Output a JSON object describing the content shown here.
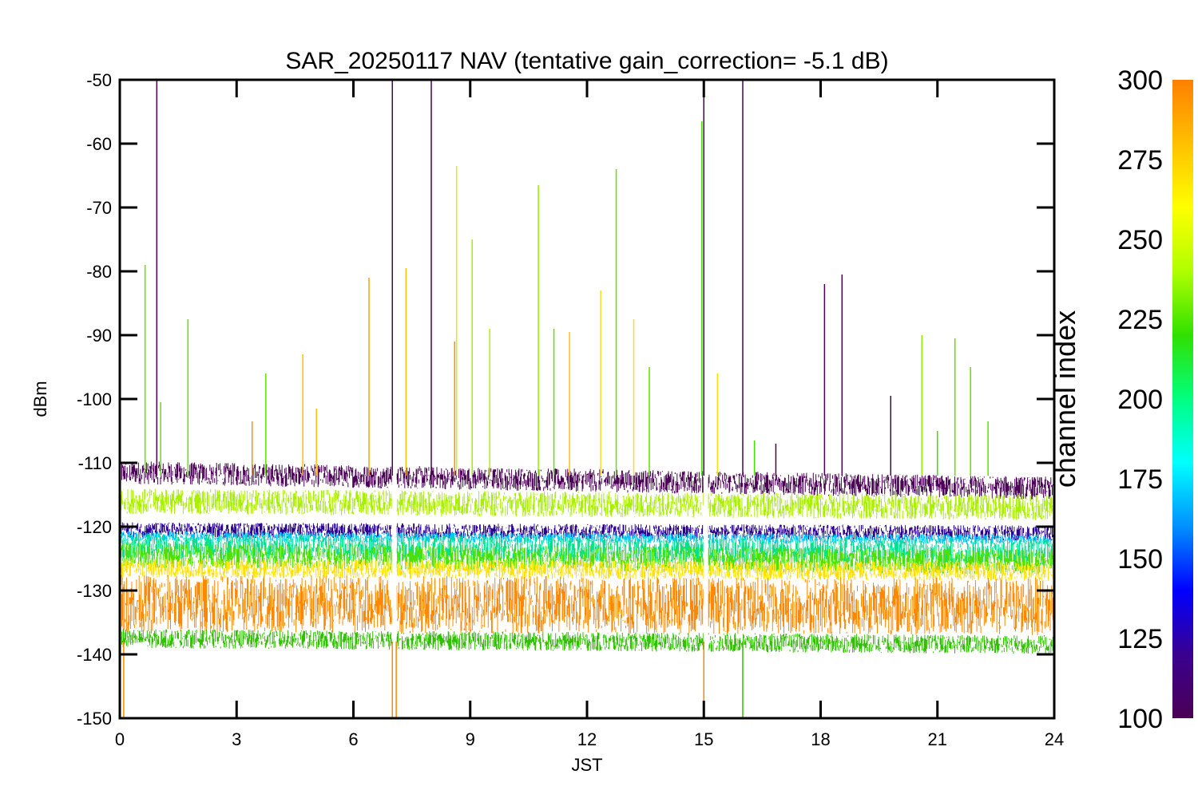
{
  "chart_data": {
    "type": "scatter",
    "title": "SAR_20250117 NAV (tentative gain_correction= -5.1 dB)",
    "xlabel": "JST",
    "ylabel": "dBm",
    "xlim": [
      0,
      24
    ],
    "ylim": [
      -150,
      -50
    ],
    "xticks": [
      "0",
      "3",
      "6",
      "9",
      "12",
      "15",
      "18",
      "21",
      "24"
    ],
    "xtick_values": [
      0,
      3,
      6,
      9,
      12,
      15,
      18,
      21,
      24
    ],
    "yticks": [
      "-50",
      "-60",
      "-70",
      "-80",
      "-90",
      "-100",
      "-110",
      "-120",
      "-130",
      "-140",
      "-150"
    ],
    "ytick_values": [
      -50,
      -60,
      -70,
      -80,
      -90,
      -100,
      -110,
      -120,
      -130,
      -140,
      -150
    ],
    "colorbar": {
      "label": "channel index",
      "range": [
        100,
        300
      ],
      "ticks": [
        "300",
        "275",
        "250",
        "225",
        "200",
        "175",
        "150",
        "125",
        "100"
      ],
      "tick_values": [
        300,
        275,
        250,
        225,
        200,
        175,
        150,
        125,
        100
      ],
      "colormap": [
        "#4b0055",
        "#3a0090",
        "#0000ff",
        "#0090ff",
        "#00ffff",
        "#00ff80",
        "#30e000",
        "#b0ff00",
        "#ffff00",
        "#ffc000",
        "#ff8000"
      ]
    },
    "gaps_hours": [
      7.05,
      15.05
    ],
    "series": [
      {
        "channel": 110,
        "color": "#4b0055",
        "level_start": -111.5,
        "level_end": -114.0,
        "noise": 1.8
      },
      {
        "channel": 250,
        "color": "#a8f000",
        "level_start": -116.0,
        "level_end": -117.0,
        "noise": 2.0
      },
      {
        "channel": 120,
        "color": "#2a0090",
        "level_start": -120.5,
        "level_end": -121.0,
        "noise": 1.2
      },
      {
        "channel": 160,
        "color": "#00c8ff",
        "level_start": -121.5,
        "level_end": -122.0,
        "noise": 0.8
      },
      {
        "channel": 200,
        "color": "#00e090",
        "level_start": -123.0,
        "level_end": -124.0,
        "noise": 2.0
      },
      {
        "channel": 240,
        "color": "#50e000",
        "level_start": -124.5,
        "level_end": -125.5,
        "noise": 2.0
      },
      {
        "channel": 270,
        "color": "#ffe000",
        "level_start": -126.5,
        "level_end": -127.0,
        "noise": 1.5
      },
      {
        "channel": 290,
        "color": "#ff8800",
        "level_start": -132.0,
        "level_end": -132.5,
        "noise": 4.5
      },
      {
        "channel": 230,
        "color": "#30c000",
        "level_start": -137.5,
        "level_end": -138.5,
        "noise": 1.5
      }
    ],
    "spikes": [
      {
        "x": 0.65,
        "y": -79,
        "color": "#60e000"
      },
      {
        "x": 0.95,
        "y": -50,
        "color": "#4b0055"
      },
      {
        "x": 1.05,
        "y": -100.5,
        "color": "#60e000"
      },
      {
        "x": 1.75,
        "y": -87.5,
        "color": "#60e000"
      },
      {
        "x": 3.4,
        "y": -103.5,
        "color": "#ff9000"
      },
      {
        "x": 3.75,
        "y": -96,
        "color": "#60e000"
      },
      {
        "x": 4.7,
        "y": -93,
        "color": "#ffc000"
      },
      {
        "x": 5.05,
        "y": -101.5,
        "color": "#ffc000"
      },
      {
        "x": 6.4,
        "y": -81,
        "color": "#ffa000"
      },
      {
        "x": 7.0,
        "y": -50,
        "color": "#4b0055"
      },
      {
        "x": 7.35,
        "y": -79.5,
        "color": "#ffc000"
      },
      {
        "x": 8.0,
        "y": -50,
        "color": "#4b0055"
      },
      {
        "x": 8.6,
        "y": -91,
        "color": "#ff9000"
      },
      {
        "x": 8.65,
        "y": -63.5,
        "color": "#d0f000"
      },
      {
        "x": 9.05,
        "y": -75,
        "color": "#a0f000"
      },
      {
        "x": 9.5,
        "y": -89,
        "color": "#b0f000"
      },
      {
        "x": 10.75,
        "y": -66.5,
        "color": "#90f000"
      },
      {
        "x": 11.15,
        "y": -89,
        "color": "#60e000"
      },
      {
        "x": 11.55,
        "y": -89.5,
        "color": "#ffc000"
      },
      {
        "x": 12.35,
        "y": -83,
        "color": "#ffe000"
      },
      {
        "x": 12.75,
        "y": -64,
        "color": "#60e000"
      },
      {
        "x": 13.2,
        "y": -87.5,
        "color": "#ffe000"
      },
      {
        "x": 13.6,
        "y": -95,
        "color": "#60e000"
      },
      {
        "x": 14.95,
        "y": -56.5,
        "color": "#40e000"
      },
      {
        "x": 15.0,
        "y": -50,
        "color": "#4b0055"
      },
      {
        "x": 15.35,
        "y": -96,
        "color": "#ffe000"
      },
      {
        "x": 16.0,
        "y": -50,
        "color": "#4b0055"
      },
      {
        "x": 16.3,
        "y": -106.5,
        "color": "#40e000"
      },
      {
        "x": 16.85,
        "y": -107,
        "color": "#4b0055"
      },
      {
        "x": 18.1,
        "y": -82,
        "color": "#4b0055"
      },
      {
        "x": 18.55,
        "y": -80.5,
        "color": "#4b0055"
      },
      {
        "x": 19.8,
        "y": -99.5,
        "color": "#4b0055"
      },
      {
        "x": 20.6,
        "y": -90,
        "color": "#90f000"
      },
      {
        "x": 21.0,
        "y": -105,
        "color": "#40e000"
      },
      {
        "x": 21.45,
        "y": -90.5,
        "color": "#60e000"
      },
      {
        "x": 21.85,
        "y": -95,
        "color": "#60e000"
      },
      {
        "x": 22.3,
        "y": -103.5,
        "color": "#60e000"
      },
      {
        "x": 0.1,
        "y": -150,
        "color": "#ff8800"
      },
      {
        "x": 7.0,
        "y": -150,
        "color": "#ff8800"
      },
      {
        "x": 7.1,
        "y": -150,
        "color": "#ff8800"
      },
      {
        "x": 15.0,
        "y": -150,
        "color": "#ff8800"
      },
      {
        "x": 16.0,
        "y": -150,
        "color": "#30c000"
      }
    ]
  }
}
